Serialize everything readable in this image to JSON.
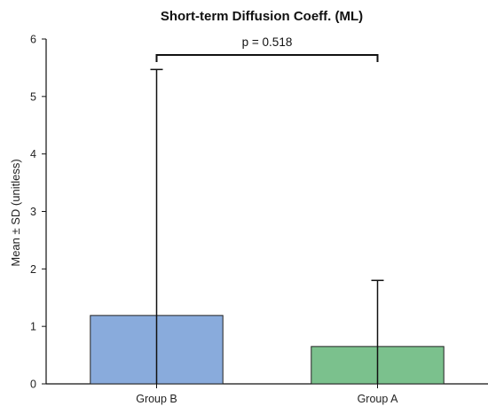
{
  "chart_data": {
    "type": "bar",
    "title": "Short-term Diffusion Coeff. (ML)",
    "ylabel": "Mean ± SD (unitless)",
    "xlabel": "",
    "ylim": [
      0,
      6
    ],
    "yticks": [
      0,
      1,
      2,
      3,
      4,
      5,
      6
    ],
    "categories": [
      "Group B",
      "Group A"
    ],
    "values": [
      1.19,
      0.65
    ],
    "errors": [
      4.28,
      1.15
    ],
    "colors": [
      "#89abdc",
      "#7bc18d"
    ],
    "grid": false,
    "legend": "none",
    "annotation": {
      "text": "p = 0.518",
      "between": [
        0,
        1
      ]
    }
  }
}
